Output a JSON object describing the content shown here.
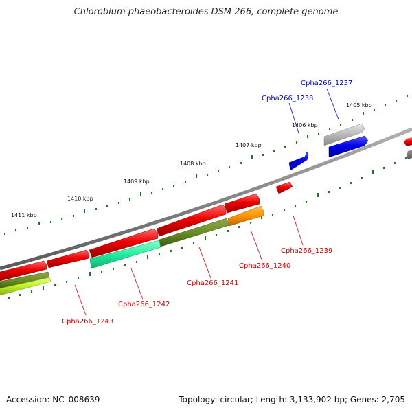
{
  "title": "Chlorobium phaeobacteroides DSM 266, complete genome",
  "footer": {
    "accession": "Accession: NC_008639",
    "summary": "Topology: circular; Length: 3,133,902 bp; Genes: 2,705"
  },
  "ticks": [
    "1405 kbp",
    "1406 kbp",
    "1407 kbp",
    "1408 kbp",
    "1409 kbp",
    "1410 kbp",
    "1411 kbp"
  ],
  "genes": {
    "cpha1237": "Cpha266_1237",
    "cpha1238": "Cpha266_1238",
    "cpha1239": "Cpha266_1239",
    "cpha1240": "Cpha266_1240",
    "cpha1241": "Cpha266_1241",
    "cpha1242": "Cpha266_1242",
    "cpha1243": "Cpha266_1243"
  },
  "colors": {
    "forward_label": "#0000cc",
    "reverse_label": "#cc0000",
    "backbone": "#808080",
    "tick": "#1a7a1a"
  }
}
